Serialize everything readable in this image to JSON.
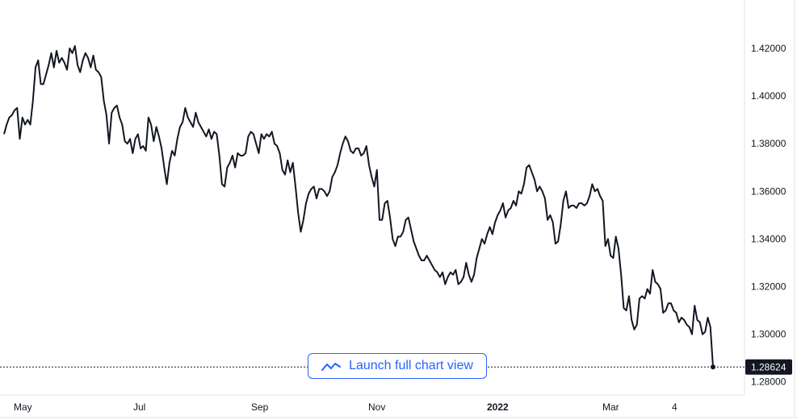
{
  "launch_button": {
    "label": "Launch full chart view"
  },
  "chart_data": {
    "type": "line",
    "x_ticks": [
      "May",
      "Jul",
      "Sep",
      "Nov",
      "2022",
      "Mar",
      "4"
    ],
    "y_ticks": [
      "1.42000",
      "1.40000",
      "1.38000",
      "1.36000",
      "1.34000",
      "1.32000",
      "1.30000",
      "1.28000"
    ],
    "ylim": [
      1.2745,
      1.4403
    ],
    "last_price": {
      "value": 1.28624,
      "label": "1.28624"
    },
    "colors": {
      "line": "#131722",
      "button": "#2962ff",
      "axis": "#e0e3eb"
    },
    "series": [
      {
        "values": [
          1.384,
          1.388,
          1.391,
          1.392,
          1.394,
          1.395,
          1.382,
          1.391,
          1.388,
          1.39,
          1.388,
          1.398,
          1.412,
          1.415,
          1.405,
          1.405,
          1.409,
          1.413,
          1.418,
          1.412,
          1.419,
          1.414,
          1.416,
          1.414,
          1.411,
          1.42,
          1.418,
          1.421,
          1.413,
          1.41,
          1.415,
          1.418,
          1.416,
          1.412,
          1.417,
          1.411,
          1.41,
          1.408,
          1.398,
          1.392,
          1.38,
          1.393,
          1.395,
          1.396,
          1.391,
          1.388,
          1.381,
          1.38,
          1.382,
          1.376,
          1.382,
          1.384,
          1.378,
          1.379,
          1.377,
          1.391,
          1.388,
          1.381,
          1.387,
          1.383,
          1.378,
          1.37,
          1.363,
          1.372,
          1.377,
          1.375,
          1.382,
          1.387,
          1.389,
          1.395,
          1.391,
          1.389,
          1.387,
          1.393,
          1.389,
          1.387,
          1.385,
          1.383,
          1.386,
          1.382,
          1.385,
          1.384,
          1.375,
          1.363,
          1.362,
          1.37,
          1.372,
          1.375,
          1.37,
          1.376,
          1.375,
          1.375,
          1.376,
          1.383,
          1.385,
          1.384,
          1.38,
          1.376,
          1.384,
          1.382,
          1.384,
          1.383,
          1.385,
          1.38,
          1.379,
          1.376,
          1.369,
          1.367,
          1.373,
          1.368,
          1.372,
          1.362,
          1.351,
          1.343,
          1.348,
          1.355,
          1.359,
          1.361,
          1.362,
          1.357,
          1.361,
          1.361,
          1.36,
          1.358,
          1.36,
          1.366,
          1.368,
          1.371,
          1.376,
          1.38,
          1.383,
          1.381,
          1.377,
          1.376,
          1.378,
          1.378,
          1.375,
          1.376,
          1.379,
          1.371,
          1.366,
          1.362,
          1.369,
          1.348,
          1.348,
          1.355,
          1.356,
          1.349,
          1.34,
          1.337,
          1.341,
          1.341,
          1.343,
          1.348,
          1.349,
          1.344,
          1.339,
          1.336,
          1.333,
          1.331,
          1.331,
          1.333,
          1.331,
          1.329,
          1.327,
          1.326,
          1.324,
          1.326,
          1.321,
          1.324,
          1.326,
          1.325,
          1.327,
          1.321,
          1.322,
          1.324,
          1.33,
          1.325,
          1.322,
          1.325,
          1.332,
          1.336,
          1.34,
          1.338,
          1.342,
          1.345,
          1.342,
          1.347,
          1.35,
          1.352,
          1.355,
          1.349,
          1.352,
          1.353,
          1.356,
          1.354,
          1.36,
          1.359,
          1.363,
          1.37,
          1.371,
          1.368,
          1.365,
          1.36,
          1.362,
          1.36,
          1.357,
          1.348,
          1.35,
          1.347,
          1.338,
          1.339,
          1.346,
          1.356,
          1.36,
          1.353,
          1.354,
          1.354,
          1.353,
          1.355,
          1.355,
          1.354,
          1.355,
          1.358,
          1.363,
          1.36,
          1.361,
          1.358,
          1.356,
          1.337,
          1.34,
          1.333,
          1.332,
          1.341,
          1.336,
          1.325,
          1.311,
          1.31,
          1.316,
          1.306,
          1.302,
          1.304,
          1.315,
          1.316,
          1.315,
          1.319,
          1.317,
          1.327,
          1.322,
          1.321,
          1.319,
          1.309,
          1.31,
          1.313,
          1.313,
          1.31,
          1.309,
          1.305,
          1.307,
          1.306,
          1.304,
          1.303,
          1.3,
          1.312,
          1.306,
          1.305,
          1.3,
          1.301,
          1.307,
          1.303,
          1.28624
        ]
      }
    ],
    "grid": false,
    "legend": "none"
  }
}
